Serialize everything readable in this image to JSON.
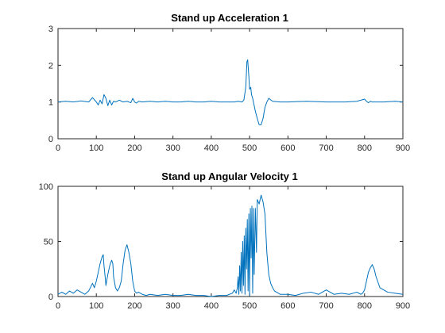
{
  "chart_data": [
    {
      "type": "line",
      "title": "Stand up Acceleration 1",
      "xlabel": "",
      "ylabel": "",
      "xlim": [
        0,
        900
      ],
      "ylim": [
        0,
        3
      ],
      "xticks": [
        "0",
        "100",
        "200",
        "300",
        "400",
        "500",
        "600",
        "700",
        "800",
        "900"
      ],
      "yticks": [
        "0",
        "1",
        "2",
        "3"
      ],
      "grid": false,
      "color": "#0072BD",
      "series": [
        {
          "x": [
            0,
            20,
            40,
            60,
            80,
            90,
            100,
            105,
            110,
            115,
            120,
            125,
            130,
            135,
            140,
            145,
            150,
            160,
            170,
            180,
            190,
            195,
            200,
            205,
            210,
            220,
            240,
            260,
            280,
            300,
            320,
            340,
            360,
            380,
            400,
            420,
            440,
            460,
            470,
            480,
            485,
            490,
            493,
            495,
            498,
            500,
            503,
            505,
            508,
            510,
            515,
            520,
            525,
            530,
            535,
            540,
            545,
            550,
            560,
            580,
            600,
            650,
            700,
            750,
            780,
            800,
            805,
            810,
            815,
            820,
            850,
            880,
            900
          ],
          "y": [
            1.0,
            1.02,
            1.0,
            1.03,
            1.0,
            1.12,
            1.0,
            0.92,
            1.05,
            0.95,
            1.2,
            1.1,
            0.9,
            1.05,
            0.92,
            1.02,
            1.0,
            1.05,
            1.0,
            1.02,
            0.98,
            1.1,
            1.0,
            0.97,
            1.02,
            1.0,
            1.02,
            1.0,
            1.02,
            1.0,
            1.0,
            1.02,
            1.0,
            1.0,
            1.02,
            1.0,
            1.0,
            1.0,
            1.02,
            1.0,
            1.05,
            1.4,
            2.1,
            2.15,
            1.7,
            1.35,
            1.4,
            1.2,
            1.1,
            1.0,
            0.75,
            0.55,
            0.38,
            0.38,
            0.55,
            0.85,
            1.0,
            1.1,
            1.02,
            1.0,
            1.0,
            1.02,
            1.0,
            1.0,
            1.02,
            1.08,
            1.02,
            0.98,
            1.02,
            1.0,
            1.0,
            1.02,
            1.0
          ]
        }
      ]
    },
    {
      "type": "line",
      "title": "Stand up Angular Velocity 1",
      "xlabel": "",
      "ylabel": "",
      "xlim": [
        0,
        900
      ],
      "ylim": [
        0,
        100
      ],
      "xticks": [
        "0",
        "100",
        "200",
        "300",
        "400",
        "500",
        "600",
        "700",
        "800",
        "900"
      ],
      "yticks": [
        "0",
        "50",
        "100"
      ],
      "grid": false,
      "color": "#0072BD",
      "series": [
        {
          "x": [
            0,
            10,
            20,
            30,
            40,
            50,
            60,
            70,
            80,
            90,
            95,
            100,
            105,
            110,
            115,
            118,
            120,
            123,
            125,
            130,
            135,
            140,
            143,
            145,
            148,
            150,
            155,
            160,
            165,
            170,
            175,
            180,
            185,
            190,
            195,
            200,
            205,
            210,
            220,
            230,
            240,
            260,
            280,
            300,
            320,
            340,
            360,
            380,
            400,
            420,
            440,
            455,
            460,
            465,
            468,
            470,
            472,
            474,
            476,
            478,
            480,
            482,
            484,
            486,
            488,
            490,
            492,
            494,
            496,
            498,
            500,
            502,
            504,
            506,
            508,
            510,
            512,
            515,
            518,
            520,
            525,
            530,
            535,
            540,
            545,
            550,
            555,
            560,
            565,
            570,
            575,
            580,
            600,
            620,
            640,
            660,
            680,
            700,
            720,
            740,
            760,
            780,
            790,
            795,
            800,
            805,
            810,
            815,
            820,
            825,
            830,
            840,
            860,
            880,
            900
          ],
          "y": [
            2,
            4,
            2,
            5,
            3,
            6,
            4,
            2,
            5,
            12,
            8,
            14,
            22,
            30,
            36,
            38,
            28,
            18,
            10,
            20,
            28,
            33,
            30,
            18,
            12,
            8,
            5,
            8,
            14,
            30,
            42,
            47,
            40,
            30,
            14,
            5,
            3,
            4,
            2,
            1,
            2,
            1,
            2,
            1,
            1,
            2,
            1,
            1,
            0,
            1,
            1,
            3,
            6,
            3,
            8,
            18,
            2,
            28,
            5,
            40,
            3,
            50,
            10,
            55,
            2,
            62,
            25,
            70,
            5,
            75,
            1,
            80,
            35,
            82,
            3,
            80,
            20,
            80,
            40,
            88,
            84,
            92,
            86,
            75,
            40,
            20,
            12,
            8,
            5,
            4,
            3,
            2,
            2,
            1,
            3,
            4,
            2,
            6,
            2,
            3,
            2,
            4,
            2,
            3,
            6,
            14,
            22,
            26,
            29,
            25,
            18,
            8,
            4,
            3,
            2
          ]
        }
      ]
    }
  ]
}
